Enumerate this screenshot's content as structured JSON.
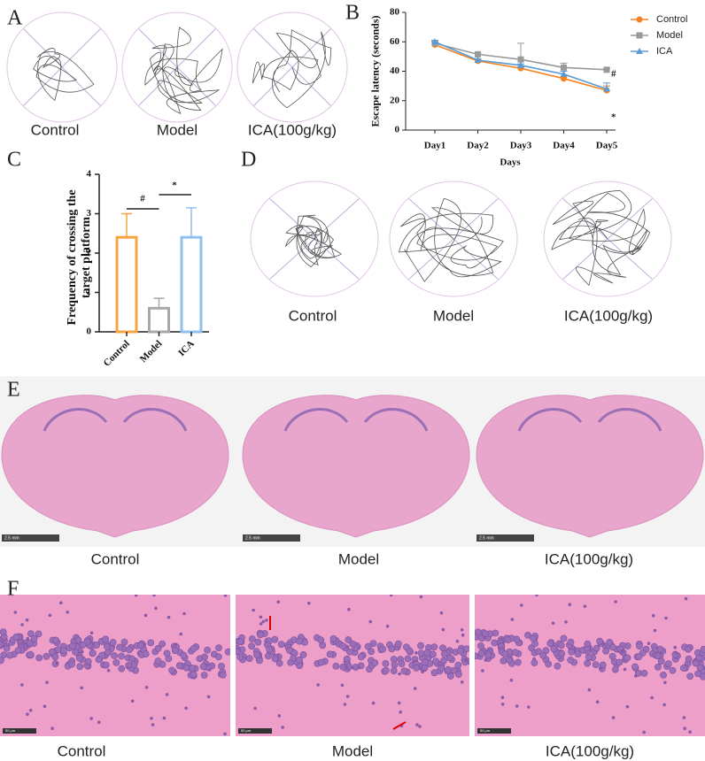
{
  "panel_letters": [
    "A",
    "B",
    "C",
    "D",
    "E",
    "F"
  ],
  "panel_a": {
    "labels": [
      "Control",
      "Model",
      "ICA(100g/kg)"
    ]
  },
  "panel_d": {
    "labels": [
      "Control",
      "Model",
      "ICA(100g/kg)"
    ]
  },
  "panel_e": {
    "labels": [
      "Control",
      "Model",
      "ICA(100g/kg)"
    ],
    "scale_bar": "2.5 mm"
  },
  "panel_f": {
    "labels": [
      "Control",
      "Model",
      "ICA(100g/kg)"
    ],
    "scale_bar": "50 μm"
  },
  "chart_data": [
    {
      "type": "line",
      "y_label": "Escape latency (seconds)",
      "x_label": "Days",
      "categories": [
        "Day1",
        "Day2",
        "Day3",
        "Day4",
        "Day5"
      ],
      "ylim": [
        0,
        80
      ],
      "yticks": [
        0,
        20,
        40,
        60,
        80
      ],
      "legend": "right",
      "series": [
        {
          "name": "Control",
          "color": "#f5821f",
          "marker": "circle",
          "values": [
            58,
            47,
            42,
            35,
            27
          ],
          "errors": [
            2,
            1,
            1,
            1,
            3
          ]
        },
        {
          "name": "Model",
          "color": "#999999",
          "marker": "square",
          "values": [
            59,
            51.5,
            48,
            42.5,
            41
          ],
          "errors": [
            2,
            1,
            11,
            3,
            1
          ]
        },
        {
          "name": "ICA",
          "color": "#5b9bd5",
          "marker": "triangle",
          "values": [
            60,
            47.5,
            44,
            38,
            28
          ],
          "errors": [
            1,
            1,
            1,
            2,
            4
          ]
        }
      ],
      "annotations": [
        "#",
        "*"
      ]
    },
    {
      "type": "bar",
      "y_label": "Frequency of crossing the target platform",
      "categories": [
        "Control",
        "Model",
        "ICA"
      ],
      "values": [
        2.4,
        0.6,
        2.4
      ],
      "errors": [
        0.6,
        0.25,
        0.75
      ],
      "colors": [
        "#f7a540",
        "#a8a8a8",
        "#8fc1f0"
      ],
      "ylim": [
        0,
        4
      ],
      "yticks": [
        0,
        1,
        2,
        3,
        4
      ],
      "annotations": [
        "#",
        "*"
      ]
    }
  ]
}
